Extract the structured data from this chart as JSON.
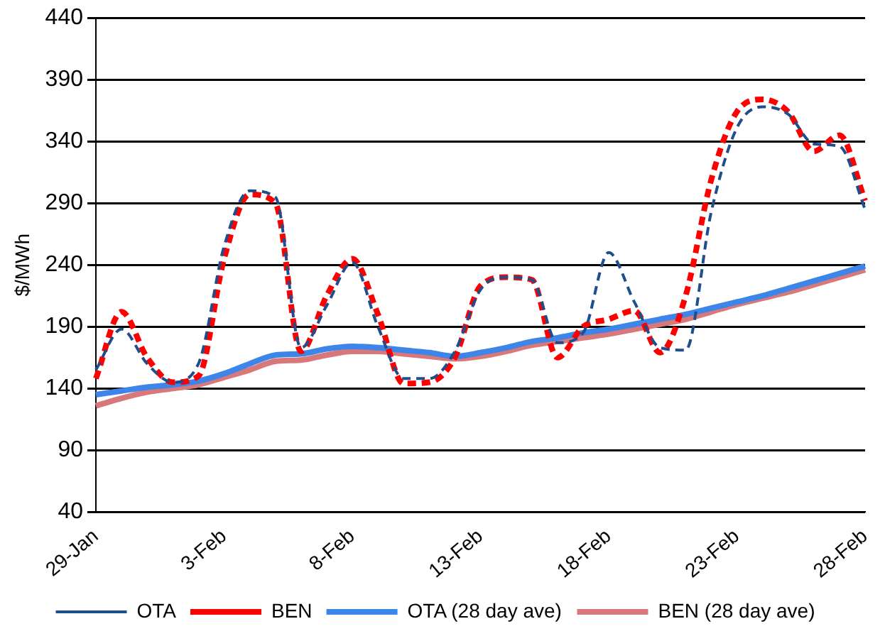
{
  "chart_data": {
    "type": "line",
    "ylabel": "$/MWh",
    "categories": [
      "29-Jan",
      null,
      null,
      null,
      null,
      "3-Feb",
      null,
      null,
      null,
      null,
      "8-Feb",
      null,
      null,
      null,
      null,
      "13-Feb",
      null,
      null,
      null,
      null,
      "18-Feb",
      null,
      null,
      null,
      null,
      "23-Feb",
      null,
      null,
      null,
      null,
      "28-Feb"
    ],
    "series": [
      {
        "name": "OTA",
        "color": "#1f4e8c",
        "line_style": "dashed",
        "values": [
          155,
          188,
          160,
          145,
          160,
          255,
          300,
          295,
          173,
          207,
          242,
          190,
          148,
          148,
          170,
          220,
          230,
          228,
          177,
          185,
          250,
          210,
          173,
          171,
          283,
          351,
          368,
          362,
          338,
          336,
          285
        ]
      },
      {
        "name": "BEN",
        "color": "#ff0000",
        "line_style": "dashed",
        "values": [
          148,
          202,
          165,
          145,
          150,
          245,
          297,
          290,
          170,
          215,
          245,
          200,
          144,
          145,
          165,
          223,
          230,
          228,
          165,
          190,
          196,
          203,
          169,
          215,
          309,
          364,
          374,
          364,
          332,
          345,
          292
        ]
      },
      {
        "name": "OTA (28 day ave)",
        "color": "#3d85e8",
        "line_style": "solid",
        "values": [
          135,
          138,
          141,
          143,
          146,
          152,
          160,
          167,
          168,
          172,
          174,
          173,
          171,
          169,
          166,
          169,
          173,
          178,
          181,
          185,
          188,
          192,
          196,
          200,
          205,
          210,
          215,
          221,
          227,
          233,
          239
        ]
      },
      {
        "name": "BEN (28 day ave)",
        "color": "#d9787a",
        "line_style": "solid",
        "values": [
          126,
          132,
          137,
          140,
          143,
          149,
          155,
          162,
          163,
          167,
          170,
          170,
          168,
          166,
          164,
          166,
          170,
          175,
          178,
          181,
          184,
          188,
          192,
          196,
          202,
          208,
          213,
          218,
          224,
          230,
          236
        ]
      }
    ],
    "ylim": [
      40,
      440
    ],
    "yticks": [
      40,
      90,
      140,
      190,
      240,
      290,
      340,
      390,
      440
    ],
    "grid": "y",
    "legend": "bottom",
    "marker": "none"
  }
}
